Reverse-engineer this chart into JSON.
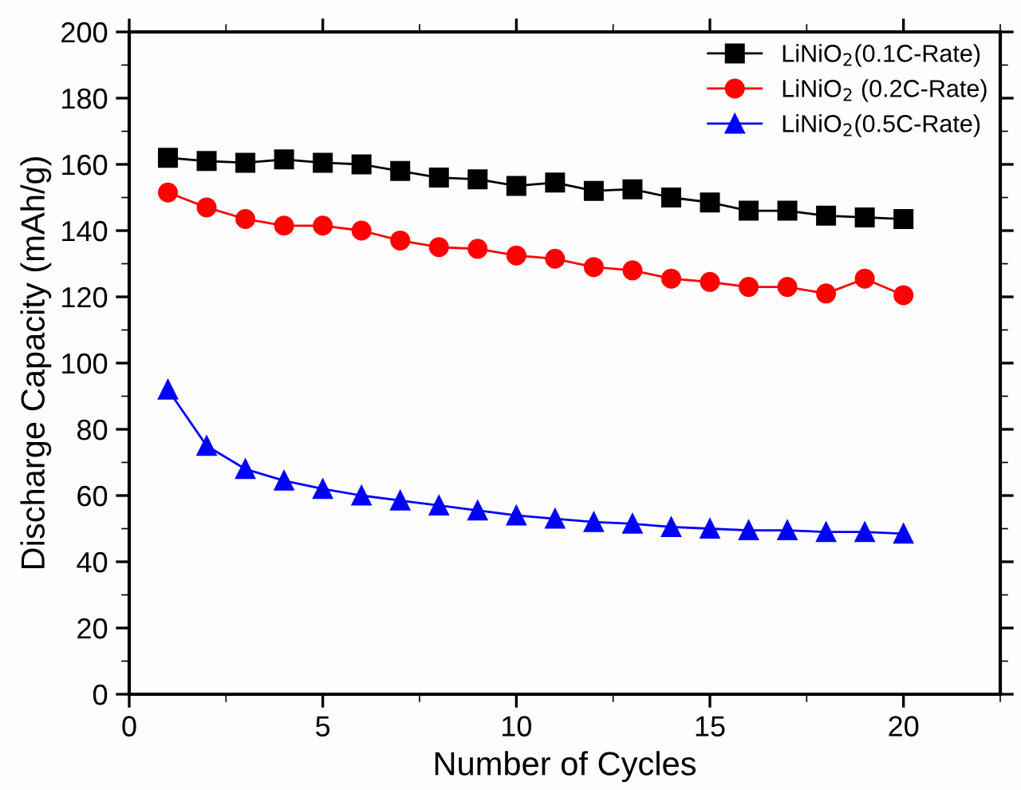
{
  "chart_data": {
    "type": "line",
    "xlabel": "Number of Cycles",
    "ylabel": "Discharge Capacity (mAh/g)",
    "x": [
      1,
      2,
      3,
      4,
      5,
      6,
      7,
      8,
      9,
      10,
      11,
      12,
      13,
      14,
      15,
      16,
      17,
      18,
      19,
      20
    ],
    "series": [
      {
        "name": "LiNiO$_{2}$(0.1C-Rate)",
        "color": "#000000",
        "marker": "square",
        "values": [
          162,
          161,
          160.5,
          161.5,
          160.5,
          160,
          158,
          156,
          155.5,
          153.5,
          154.5,
          152,
          152.5,
          150,
          148.5,
          146,
          146,
          144.5,
          144,
          143.5
        ]
      },
      {
        "name": "LiNiO$_{2}$ (0.2C-Rate)",
        "color": "#ff0000",
        "marker": "circle",
        "values": [
          151.5,
          147,
          143.5,
          141.5,
          141.5,
          140,
          137,
          135,
          134.5,
          132.5,
          131.5,
          129,
          128,
          125.5,
          124.5,
          123,
          123,
          121,
          125.5,
          120.5
        ]
      },
      {
        "name": "LiNiO$_{2}$(0.5C-Rate)",
        "color": "#0000ff",
        "marker": "triangle",
        "values": [
          92,
          75,
          68,
          64.5,
          62,
          60,
          58.5,
          57,
          55.5,
          54,
          53,
          52,
          51.5,
          50.5,
          50,
          49.5,
          49.5,
          49,
          49,
          48.5
        ]
      }
    ],
    "xlim": [
      0,
      22.5
    ],
    "xticks": [
      0,
      5,
      10,
      15,
      20
    ],
    "ylim": [
      0,
      200
    ],
    "yticks": [
      0,
      20,
      40,
      60,
      80,
      100,
      120,
      140,
      160,
      180,
      200
    ],
    "grid": false,
    "legend": "top right",
    "line_style": "solid"
  }
}
